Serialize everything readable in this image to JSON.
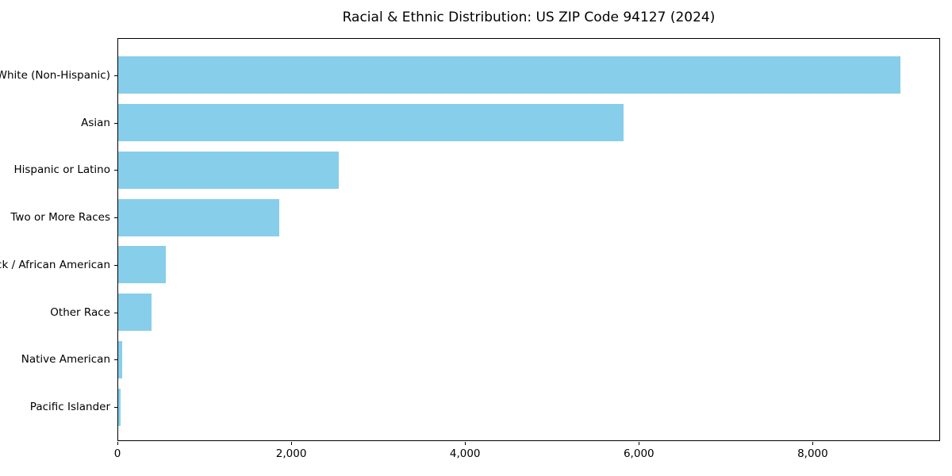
{
  "chart_data": {
    "type": "bar",
    "orientation": "horizontal",
    "title": "Racial & Ethnic Distribution: US ZIP Code 94127 (2024)",
    "categories": [
      "White (Non-Hispanic)",
      "Asian",
      "Hispanic or Latino",
      "Two or More Races",
      "Black / African American",
      "Other Race",
      "Native American",
      "Pacific Islander"
    ],
    "values": [
      9015,
      5830,
      2540,
      1855,
      550,
      380,
      50,
      25
    ],
    "xlabel": "",
    "ylabel": "",
    "xlim": [
      0,
      9466
    ],
    "x_tick_values": [
      0,
      2000,
      4000,
      6000,
      8000
    ],
    "x_tick_labels": [
      "0",
      "2,000",
      "4,000",
      "6,000",
      "8,000"
    ],
    "bar_color": "#87CEEB",
    "grid": false,
    "legend": null,
    "category_order": "largest_at_top"
  }
}
